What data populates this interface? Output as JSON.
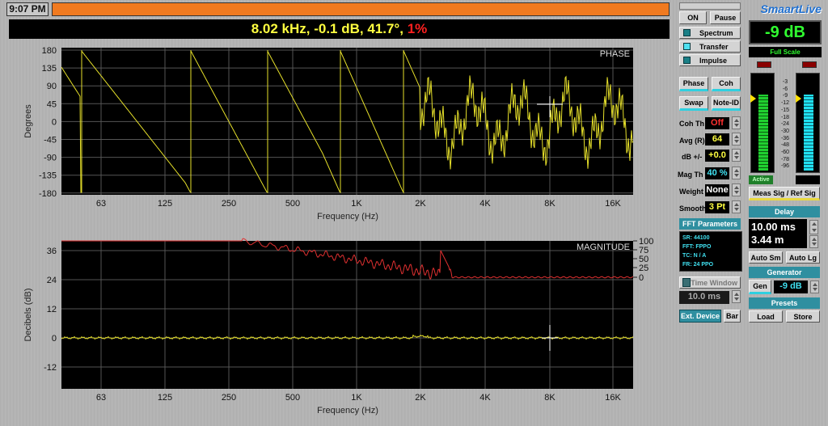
{
  "top": {
    "clock": "9:07 PM",
    "readout_main": "8.02 kHz, -0.1 dB, 41.7°,",
    "readout_pct": "1%"
  },
  "phase_plot": {
    "tag": "PHASE",
    "ylabel": "Degrees",
    "xlabel": "Frequency (Hz)",
    "yticks": [
      "180",
      "135",
      "90",
      "45",
      "0",
      "-45",
      "-90",
      "-135",
      "-180"
    ],
    "xticks": [
      "63",
      "125",
      "250",
      "500",
      "1K",
      "2K",
      "4K",
      "8K",
      "16K"
    ]
  },
  "mag_plot": {
    "tag": "MAGNITUDE",
    "ylabel": "Decibels (dB)",
    "xlabel": "Frequency (Hz)",
    "yticks": [
      "36",
      "24",
      "12",
      "0",
      "-12"
    ],
    "coh_ticks": [
      "100",
      "75",
      "50",
      "25",
      "0"
    ],
    "xticks": [
      "63",
      "125",
      "250",
      "500",
      "1K",
      "2K",
      "4K",
      "8K",
      "16K"
    ]
  },
  "controls": {
    "on": "ON",
    "pause": "Pause",
    "spectrum": "Spectrum",
    "transfer": "Transfer",
    "impulse": "Impulse",
    "phase": "Phase",
    "coh": "Coh",
    "swap": "Swap",
    "noteid": "Note-ID",
    "cohth_label": "Coh Th",
    "cohth_val": "Off",
    "avg_label": "Avg (R)",
    "avg_val": "64",
    "db_label": "dB +/-",
    "db_val": "+0.0",
    "magth_label": "Mag Th",
    "magth_val": "40 %",
    "weight_label": "Weight",
    "weight_val": "None",
    "smooth_label": "Smooth",
    "smooth_val": "3 Pt",
    "fft_header": "FFT Parameters",
    "fft_lines": [
      "SR: 44100",
      "FFT: FPPO",
      "TC: N / A",
      "FR: 24 PPO"
    ],
    "time_window": "Time Window",
    "tw_val": "10.0 ms",
    "ext_device": "Ext. Device",
    "bar": "Bar"
  },
  "right": {
    "logo": "SmaartLive",
    "level": "-9 dB",
    "full_scale": "Full Scale",
    "meter_scale": [
      "-3",
      "-6",
      "-9",
      "-12",
      "-15",
      "-18",
      "-24",
      "-30",
      "-36",
      "-48",
      "-60",
      "-78",
      "-96"
    ],
    "active": "Active",
    "meas": "Meas Sig / Ref Sig",
    "delay_header": "Delay",
    "delay_ms": "10.00 ms",
    "delay_m": "3.44 m",
    "auto_sm": "Auto Sm",
    "auto_lg": "Auto Lg",
    "gen_header": "Generator",
    "gen": "Gen",
    "gen_val": "-9 dB",
    "presets_header": "Presets",
    "load": "Load",
    "store": "Store"
  }
}
